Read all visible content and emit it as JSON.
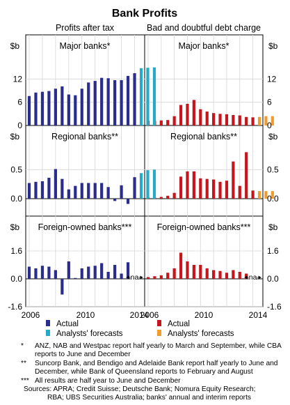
{
  "chart_data": {
    "type": "bar",
    "title": "Bank Profits",
    "columns": [
      "Profits after tax",
      "Bad and doubtful debt charge"
    ],
    "unit": "$b",
    "x": {
      "labels": [
        "2006",
        "2010",
        "2014"
      ],
      "range": [
        2006,
        2014.5
      ],
      "start": 2006.0,
      "step": 0.5
    },
    "colors": {
      "left_actual": "#2b2d8c",
      "left_forecast": "#27a9c8",
      "right_actual": "#c4161c",
      "right_forecast": "#f29b30"
    },
    "panels": [
      {
        "name": "Major banks*",
        "ylim": [
          0,
          18
        ],
        "yticks": [
          "0",
          "6",
          "12"
        ],
        "ytick_values": [
          0,
          6,
          12
        ],
        "profits_actual": [
          7.6,
          8.5,
          8.7,
          8.9,
          9.5,
          10.1,
          8.0,
          7.8,
          9.5,
          11.1,
          11.5,
          12.3,
          12.2,
          11.7,
          11.7,
          12.8,
          13.5
        ],
        "profits_forecast": [
          14.8,
          14.9,
          15.0
        ],
        "debt_actual": [
          1.2,
          1.2,
          1.3,
          1.4,
          2.4,
          5.3,
          5.6,
          6.6,
          4.2,
          3.6,
          3.2,
          3.0,
          2.9,
          2.7,
          2.6,
          2.2,
          2.1
        ],
        "debt_forecast": [
          2.2,
          2.4,
          2.4
        ]
      },
      {
        "name": "Regional banks**",
        "ylim": [
          -0.3,
          0.9
        ],
        "yticks": [
          "0.0",
          "0.5"
        ],
        "ytick_values": [
          0,
          0.5
        ],
        "profits_actual": [
          0.27,
          0.29,
          0.3,
          0.36,
          0.51,
          0.34,
          0.16,
          0.22,
          0.27,
          0.27,
          0.27,
          0.27,
          0.2,
          -0.04,
          0.23,
          -0.09,
          0.37
        ],
        "profits_forecast": [
          0.44,
          0.49,
          0.5
        ],
        "debt_actual": [
          0.02,
          0.02,
          0.03,
          0.05,
          0.1,
          0.38,
          0.47,
          0.47,
          0.35,
          0.34,
          0.33,
          0.29,
          0.31,
          0.64,
          0.22,
          0.8,
          0.14
        ],
        "debt_forecast": [
          0.13,
          0.13,
          0.13
        ]
      },
      {
        "name": "Foreign-owned banks***",
        "ylim": [
          -1.6,
          2.4
        ],
        "yticks": [
          "-1.6",
          "0.0",
          "1.6"
        ],
        "ytick_values": [
          -1.6,
          0,
          1.6
        ],
        "profits_actual": [
          0.7,
          0.6,
          0.75,
          0.7,
          0.5,
          -0.9,
          1.0,
          0.05,
          0.6,
          0.7,
          0.75,
          0.9,
          0.4,
          0.8,
          0.3,
          0.95
        ],
        "debt_actual": [
          0.1,
          0.15,
          0.2,
          0.35,
          0.6,
          1.5,
          1.0,
          0.8,
          0.8,
          0.6,
          0.5,
          0.45,
          0.35,
          0.5,
          0.4,
          0.3
        ],
        "na_label": "na"
      }
    ],
    "legend": {
      "left": [
        "Actual",
        "Analysts' forecasts"
      ],
      "right": [
        "Actual",
        "Analysts' forecasts"
      ]
    }
  },
  "notes": [
    {
      "marker": "*",
      "text": "ANZ, NAB and Westpac report half yearly to March and September, while CBA reports to June and December"
    },
    {
      "marker": "**",
      "text": "Suncorp Bank, and Bendigo and Adelaide Bank report half yearly to June and December, while Bank of Queensland reports to February and August"
    },
    {
      "marker": "***",
      "text": "All results are half year to June and December"
    }
  ],
  "sources": [
    "Sources: APRA; Credit Suisse; Deutsche Bank; Nomura Equity Research;",
    "RBA; UBS Securities Australia; banks' annual and interim reports"
  ]
}
